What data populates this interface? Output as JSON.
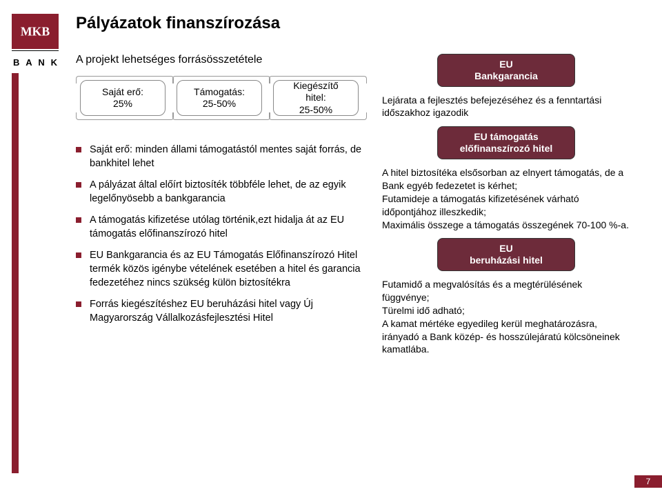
{
  "brand": {
    "logo_text": "MKB",
    "logo_sub_letters": [
      "B",
      "A",
      "N",
      "K"
    ],
    "primary_color": "#8a1e2e",
    "tag_bg": "#6d2b3a"
  },
  "title": "Pályázatok finanszírozása",
  "left": {
    "subtitle": "A projekt lehetséges forrásösszetétele",
    "banners": [
      {
        "label": "Saját erő:\n25%"
      },
      {
        "label": "Támogatás:\n25-50%"
      },
      {
        "label": "Kiegészítő\nhitel:\n25-50%"
      }
    ],
    "bullets": [
      "Saját erő: minden állami támogatástól mentes saját forrás, de bankhitel lehet",
      "A pályázat által előírt biztosíték többféle lehet, de az egyik legelőnyösebb a bankgarancia",
      "A támogatás kifizetése utólag történik,ezt hidalja át az EU támogatás előfinanszírozó hitel",
      "EU Bankgarancia és az EU Támogatás Előfinanszírozó Hitel termék közös igénybe vételének esetében a hitel és garancia fedezetéhez nincs szükség külön biztosítékra",
      "Forrás kiegészítéshez EU beruházási hitel vagy Új Magyarország Vállalkozásfejlesztési Hitel"
    ]
  },
  "right": {
    "box1": "EU\nBankgarancia",
    "text1": "Lejárata a fejlesztés befejezéséhez és a fenntartási időszakhoz igazodik",
    "box2": "EU támogatás\nelőfinanszírozó hitel",
    "text2": "A hitel biztosítéka elsősorban az elnyert támogatás, de a Bank egyéb fedezetet is kérhet;\nFutamideje a támogatás kifizetésének várható időpontjához illeszkedik;\nMaximális összege a támogatás összegének 70-100 %-a.",
    "box3": "EU\nberuházási hitel",
    "text3": "Futamidő a megvalósítás és a megtérülésének függvénye;\nTürelmi idő adható;\nA kamat mértéke egyedileg kerül meghatározásra, irányadó a Bank közép- és hosszúlejáratú kölcsöneinek kamatlába."
  },
  "page_number": "7"
}
